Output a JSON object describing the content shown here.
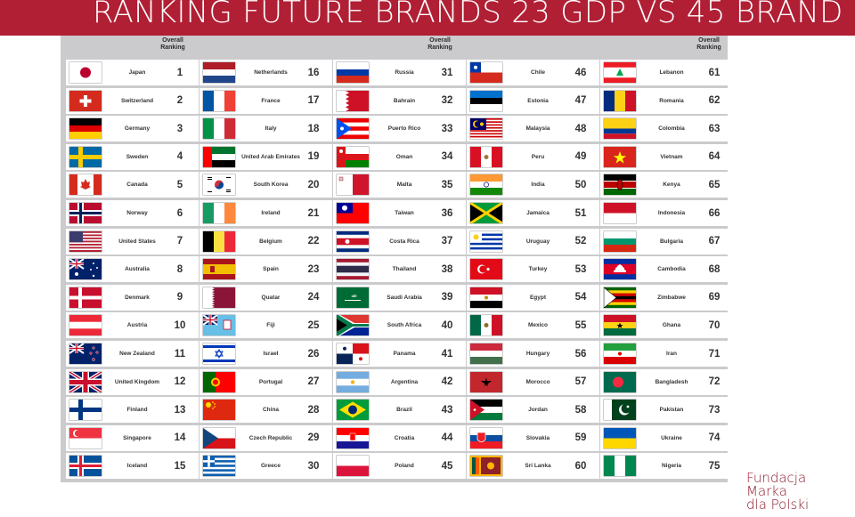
{
  "header": {
    "title": "RANKING FUTURE BRANDS 23 GDP VS 45 BRAND",
    "accent_color": "#b01f34"
  },
  "table": {
    "overall_header_line1": "Overall",
    "overall_header_line2": "Ranking",
    "columns": [
      [
        {
          "name": "Japan",
          "rank": "1",
          "flag": "japan-flag-icon"
        },
        {
          "name": "Switzerland",
          "rank": "2",
          "flag": "switzerland-flag-icon"
        },
        {
          "name": "Germany",
          "rank": "3",
          "flag": "germany-flag-icon"
        },
        {
          "name": "Sweden",
          "rank": "4",
          "flag": "sweden-flag-icon"
        },
        {
          "name": "Canada",
          "rank": "5",
          "flag": "canada-flag-icon"
        },
        {
          "name": "Norway",
          "rank": "6",
          "flag": "norway-flag-icon"
        },
        {
          "name": "United States",
          "rank": "7",
          "flag": "usa-flag-icon"
        },
        {
          "name": "Australia",
          "rank": "8",
          "flag": "australia-flag-icon"
        },
        {
          "name": "Denmark",
          "rank": "9",
          "flag": "denmark-flag-icon"
        },
        {
          "name": "Austria",
          "rank": "10",
          "flag": "austria-flag-icon"
        },
        {
          "name": "New Zealand",
          "rank": "11",
          "flag": "new-zealand-flag-icon"
        },
        {
          "name": "United Kingdom",
          "rank": "12",
          "flag": "uk-flag-icon"
        },
        {
          "name": "Finland",
          "rank": "13",
          "flag": "finland-flag-icon"
        },
        {
          "name": "Singapore",
          "rank": "14",
          "flag": "singapore-flag-icon"
        },
        {
          "name": "Iceland",
          "rank": "15",
          "flag": "iceland-flag-icon"
        }
      ],
      [
        {
          "name": "Netherlands",
          "rank": "16",
          "flag": "netherlands-flag-icon"
        },
        {
          "name": "France",
          "rank": "17",
          "flag": "france-flag-icon"
        },
        {
          "name": "Italy",
          "rank": "18",
          "flag": "italy-flag-icon"
        },
        {
          "name": "United Arab Emirates",
          "rank": "19",
          "flag": "uae-flag-icon"
        },
        {
          "name": "South Korea",
          "rank": "20",
          "flag": "south-korea-flag-icon"
        },
        {
          "name": "Ireland",
          "rank": "21",
          "flag": "ireland-flag-icon"
        },
        {
          "name": "Belgium",
          "rank": "22",
          "flag": "belgium-flag-icon"
        },
        {
          "name": "Spain",
          "rank": "23",
          "flag": "spain-flag-icon"
        },
        {
          "name": "Quatar",
          "rank": "24",
          "flag": "qatar-flag-icon"
        },
        {
          "name": "Fiji",
          "rank": "25",
          "flag": "fiji-flag-icon"
        },
        {
          "name": "Israel",
          "rank": "26",
          "flag": "israel-flag-icon"
        },
        {
          "name": "Portugal",
          "rank": "27",
          "flag": "portugal-flag-icon"
        },
        {
          "name": "China",
          "rank": "28",
          "flag": "china-flag-icon"
        },
        {
          "name": "Czech Republic",
          "rank": "29",
          "flag": "czech-flag-icon"
        },
        {
          "name": "Greece",
          "rank": "30",
          "flag": "greece-flag-icon"
        }
      ],
      [
        {
          "name": "Russia",
          "rank": "31",
          "flag": "russia-flag-icon"
        },
        {
          "name": "Bahrain",
          "rank": "32",
          "flag": "bahrain-flag-icon"
        },
        {
          "name": "Puerto Rico",
          "rank": "33",
          "flag": "puerto-rico-flag-icon"
        },
        {
          "name": "Oman",
          "rank": "34",
          "flag": "oman-flag-icon"
        },
        {
          "name": "Malta",
          "rank": "35",
          "flag": "malta-flag-icon"
        },
        {
          "name": "Taiwan",
          "rank": "36",
          "flag": "taiwan-flag-icon"
        },
        {
          "name": "Costa Rica",
          "rank": "37",
          "flag": "costa-rica-flag-icon"
        },
        {
          "name": "Thailand",
          "rank": "38",
          "flag": "thailand-flag-icon"
        },
        {
          "name": "Saudi Arabia",
          "rank": "39",
          "flag": "saudi-arabia-flag-icon"
        },
        {
          "name": "South Africa",
          "rank": "40",
          "flag": "south-africa-flag-icon"
        },
        {
          "name": "Panama",
          "rank": "41",
          "flag": "panama-flag-icon"
        },
        {
          "name": "Argentina",
          "rank": "42",
          "flag": "argentina-flag-icon"
        },
        {
          "name": "Brazil",
          "rank": "43",
          "flag": "brazil-flag-icon"
        },
        {
          "name": "Croatia",
          "rank": "44",
          "flag": "croatia-flag-icon"
        },
        {
          "name": "Poland",
          "rank": "45",
          "flag": "poland-flag-icon"
        }
      ],
      [
        {
          "name": "Chile",
          "rank": "46",
          "flag": "chile-flag-icon"
        },
        {
          "name": "Estonia",
          "rank": "47",
          "flag": "estonia-flag-icon"
        },
        {
          "name": "Malaysia",
          "rank": "48",
          "flag": "malaysia-flag-icon"
        },
        {
          "name": "Peru",
          "rank": "49",
          "flag": "peru-flag-icon"
        },
        {
          "name": "India",
          "rank": "50",
          "flag": "india-flag-icon"
        },
        {
          "name": "Jamaica",
          "rank": "51",
          "flag": "jamaica-flag-icon"
        },
        {
          "name": "Uruguay",
          "rank": "52",
          "flag": "uruguay-flag-icon"
        },
        {
          "name": "Turkey",
          "rank": "53",
          "flag": "turkey-flag-icon"
        },
        {
          "name": "Egypt",
          "rank": "54",
          "flag": "egypt-flag-icon"
        },
        {
          "name": "Mexico",
          "rank": "55",
          "flag": "mexico-flag-icon"
        },
        {
          "name": "Hungary",
          "rank": "56",
          "flag": "hungary-flag-icon"
        },
        {
          "name": "Morocco",
          "rank": "57",
          "flag": "morocco-flag-icon"
        },
        {
          "name": "Jordan",
          "rank": "58",
          "flag": "jordan-flag-icon"
        },
        {
          "name": "Slovakia",
          "rank": "59",
          "flag": "slovakia-flag-icon"
        },
        {
          "name": "Sri Lanka",
          "rank": "60",
          "flag": "sri-lanka-flag-icon"
        }
      ],
      [
        {
          "name": "Lebanon",
          "rank": "61",
          "flag": "lebanon-flag-icon"
        },
        {
          "name": "Romania",
          "rank": "62",
          "flag": "romania-flag-icon"
        },
        {
          "name": "Colombia",
          "rank": "63",
          "flag": "colombia-flag-icon"
        },
        {
          "name": "Vietnam",
          "rank": "64",
          "flag": "vietnam-flag-icon"
        },
        {
          "name": "Kenya",
          "rank": "65",
          "flag": "kenya-flag-icon"
        },
        {
          "name": "Indonesia",
          "rank": "66",
          "flag": "indonesia-flag-icon"
        },
        {
          "name": "Bulgaria",
          "rank": "67",
          "flag": "bulgaria-flag-icon"
        },
        {
          "name": "Cambodia",
          "rank": "68",
          "flag": "cambodia-flag-icon"
        },
        {
          "name": "Zimbabwe",
          "rank": "69",
          "flag": "zimbabwe-flag-icon"
        },
        {
          "name": "Ghana",
          "rank": "70",
          "flag": "ghana-flag-icon"
        },
        {
          "name": "Iran",
          "rank": "71",
          "flag": "iran-flag-icon"
        },
        {
          "name": "Bangladesh",
          "rank": "72",
          "flag": "bangladesh-flag-icon"
        },
        {
          "name": "Pakistan",
          "rank": "73",
          "flag": "pakistan-flag-icon"
        },
        {
          "name": "Ukraine",
          "rank": "74",
          "flag": "ukraine-flag-icon"
        },
        {
          "name": "Nigeria",
          "rank": "75",
          "flag": "nigeria-flag-icon"
        }
      ]
    ]
  },
  "logo": {
    "line1_initial": "F",
    "line1_rest": "undacja",
    "line2": "Marka",
    "line3": "dla Polski"
  }
}
